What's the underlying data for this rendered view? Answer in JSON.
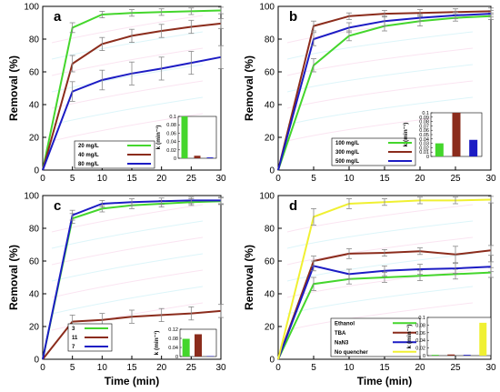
{
  "chart_data": [
    {
      "type": "line",
      "panel_label": "a",
      "xlabel": "",
      "ylabel": "Removal (%)",
      "xlim": [
        0,
        30
      ],
      "ylim": [
        0,
        100
      ],
      "xticks": [
        "0",
        "5",
        "10",
        "15",
        "20",
        "25",
        "30"
      ],
      "yticks": [
        "0",
        "20",
        "40",
        "60",
        "80",
        "100"
      ],
      "x": [
        0,
        5,
        10,
        15,
        20,
        25,
        30
      ],
      "series": [
        {
          "name": "20 mg/L",
          "color": "#44d62c",
          "values": [
            0,
            87,
            95,
            96,
            96.5,
            97,
            97.5
          ],
          "errors": [
            0,
            3,
            2,
            2,
            2,
            2,
            2
          ]
        },
        {
          "name": "40 mg/L",
          "color": "#8b2c1c",
          "values": [
            0,
            65,
            77,
            82,
            85,
            87.5,
            89.5
          ],
          "errors": [
            0,
            5,
            4,
            4,
            4,
            4,
            3
          ]
        },
        {
          "name": "80 mg/L",
          "color": "#1c1cc4",
          "values": [
            0,
            48,
            55,
            59,
            62,
            65.5,
            69
          ],
          "errors": [
            0,
            6,
            6,
            7,
            7,
            7,
            7
          ]
        }
      ],
      "inset": {
        "ylabel": "k (min⁻¹)",
        "ylim": [
          0,
          0.1
        ],
        "yticks": [
          "0",
          "0.02",
          "0.04",
          "0.06",
          "0.08",
          "0.1"
        ],
        "values": [
          0.1,
          0.006,
          0.002
        ]
      }
    },
    {
      "type": "line",
      "panel_label": "b",
      "xlabel": "",
      "ylabel": "Removal (%)",
      "xlim": [
        0,
        30
      ],
      "ylim": [
        0,
        100
      ],
      "xticks": [
        "0",
        "5",
        "10",
        "15",
        "20",
        "25",
        "30"
      ],
      "yticks": [
        "0",
        "20",
        "40",
        "60",
        "80",
        "100"
      ],
      "x": [
        0,
        5,
        10,
        15,
        20,
        25,
        30
      ],
      "series": [
        {
          "name": "100 mg/L",
          "color": "#44d62c",
          "values": [
            0,
            64,
            82,
            88,
            91,
            93,
            94
          ],
          "errors": [
            0,
            4,
            3,
            3,
            3,
            2,
            2
          ]
        },
        {
          "name": "300 mg/L",
          "color": "#8b2c1c",
          "values": [
            0,
            88,
            94,
            95.5,
            96,
            96.5,
            97
          ],
          "errors": [
            0,
            3,
            2,
            2,
            2,
            2,
            2
          ]
        },
        {
          "name": "500 mg/L",
          "color": "#1c1cc4",
          "values": [
            0,
            80,
            87,
            91,
            93,
            94.5,
            95.5
          ],
          "errors": [
            0,
            4,
            3,
            3,
            2,
            2,
            2
          ]
        }
      ],
      "inset": {
        "ylabel": "k (min⁻¹)",
        "ylim": [
          0,
          0.1
        ],
        "yticks": [
          "0",
          "0.01",
          "0.02",
          "0.03",
          "0.04",
          "0.05",
          "0.06",
          "0.07",
          "0.08",
          "0.09",
          "0.1"
        ],
        "values": [
          0.03,
          0.1,
          0.038
        ]
      }
    },
    {
      "type": "line",
      "panel_label": "c",
      "xlabel": "Time (min)",
      "ylabel": "Removal (%)",
      "xlim": [
        0,
        30
      ],
      "ylim": [
        0,
        100
      ],
      "xticks": [
        "0",
        "5",
        "10",
        "15",
        "20",
        "25",
        "30"
      ],
      "yticks": [
        "0",
        "20",
        "40",
        "60",
        "80",
        "100"
      ],
      "x": [
        0,
        5,
        10,
        15,
        20,
        25,
        30
      ],
      "series": [
        {
          "name": "3",
          "color": "#44d62c",
          "values": [
            0,
            86,
            92,
            94,
            95,
            96,
            96.5
          ],
          "errors": [
            0,
            3,
            2,
            2,
            2,
            2,
            2
          ]
        },
        {
          "name": "11",
          "color": "#8b2c1c",
          "values": [
            0,
            23,
            24,
            26,
            27,
            28,
            29.5
          ],
          "errors": [
            0,
            4,
            4,
            4,
            4,
            4,
            4
          ]
        },
        {
          "name": "7",
          "color": "#1c1cc4",
          "values": [
            0,
            88,
            95,
            96,
            96.5,
            97,
            97
          ],
          "errors": [
            0,
            3,
            2,
            2,
            2,
            2,
            2
          ]
        }
      ],
      "inset": {
        "ylabel": "k (min⁻¹)",
        "ylim": [
          0,
          0.12
        ],
        "yticks": [
          "0",
          "0.04",
          "0.08",
          "0.12"
        ],
        "values": [
          0.078,
          0.098,
          0.002
        ]
      }
    },
    {
      "type": "line",
      "panel_label": "d",
      "xlabel": "Time (min)",
      "ylabel": "Removal (%)",
      "xlim": [
        0,
        30
      ],
      "ylim": [
        0,
        100
      ],
      "xticks": [
        "0",
        "5",
        "10",
        "15",
        "20",
        "25",
        "30"
      ],
      "yticks": [
        "0",
        "20",
        "40",
        "60",
        "80",
        "100"
      ],
      "x": [
        0,
        5,
        10,
        15,
        20,
        25,
        30
      ],
      "series": [
        {
          "name": "Ethanol",
          "color": "#44d62c",
          "values": [
            0,
            46,
            49,
            50,
            51,
            52,
            53
          ],
          "errors": [
            0,
            4,
            3,
            3,
            3,
            3,
            3
          ]
        },
        {
          "name": "TBA",
          "color": "#8b2c1c",
          "values": [
            0,
            60,
            64.5,
            65,
            66,
            64,
            66.5
          ],
          "errors": [
            0,
            3,
            3,
            2,
            2,
            5,
            3
          ]
        },
        {
          "name": "NaN3",
          "color": "#1c1cc4",
          "values": [
            0,
            57,
            52,
            54,
            55,
            55.5,
            56.5
          ],
          "errors": [
            0,
            3,
            3,
            3,
            3,
            3,
            3
          ]
        },
        {
          "name": "No quencher",
          "color": "#f0f032",
          "values": [
            0,
            87,
            95,
            96,
            97,
            97,
            97.5
          ],
          "errors": [
            0,
            5,
            3,
            2,
            2,
            2,
            2
          ]
        }
      ],
      "inset": {
        "ylabel": "k (min⁻¹)",
        "ylim": [
          0,
          0.1
        ],
        "yticks": [
          "0",
          "0.02",
          "0.04",
          "0.06",
          "0.08",
          "0.1"
        ],
        "values": [
          0.002,
          0.003,
          0.002,
          0.086
        ]
      }
    }
  ]
}
